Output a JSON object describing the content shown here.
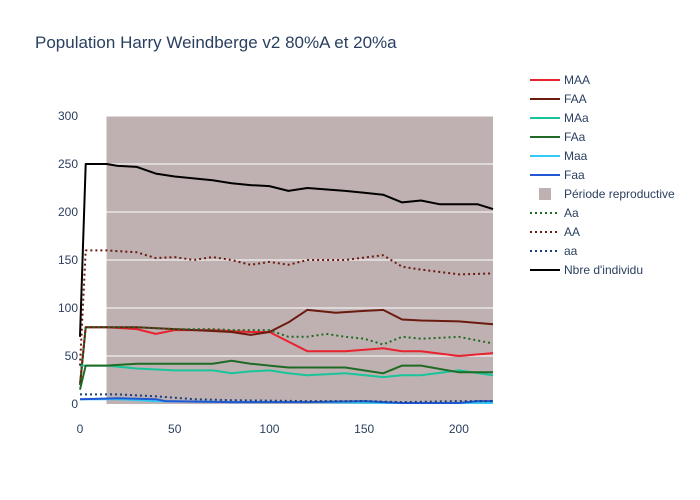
{
  "colors": {
    "MAA": "#e8222f",
    "FAA": "#6b1a10",
    "MAa": "#18c49a",
    "FAa": "#1f6b25",
    "Maa": "#35c8f2",
    "Faa": "#2058d4",
    "repro": "#bfb1b1",
    "Aa": "#1f6b25",
    "AA": "#6b1a10",
    "aa": "#1a3f7a",
    "total": "#000000"
  },
  "chart_data": {
    "type": "line",
    "title": "Population Harry Weindberge v2 80%A et 20%a",
    "xlabel": "",
    "ylabel": "",
    "xlim": [
      0,
      218
    ],
    "ylim": [
      0,
      300
    ],
    "x_ticks": [
      0,
      50,
      100,
      150,
      200
    ],
    "y_ticks": [
      0,
      50,
      100,
      150,
      200,
      250,
      300
    ],
    "legend_position": "right",
    "reproductive_period": {
      "name": "Période reproductive",
      "x0": 14,
      "x1": 218
    },
    "series": [
      {
        "name": "MAA",
        "color_key": "MAA",
        "dash": "solid",
        "points": [
          [
            0,
            20
          ],
          [
            3,
            80
          ],
          [
            14,
            80
          ],
          [
            30,
            78
          ],
          [
            40,
            73
          ],
          [
            50,
            77
          ],
          [
            70,
            77
          ],
          [
            90,
            75
          ],
          [
            100,
            75
          ],
          [
            110,
            65
          ],
          [
            120,
            55
          ],
          [
            140,
            55
          ],
          [
            160,
            58
          ],
          [
            170,
            55
          ],
          [
            180,
            55
          ],
          [
            200,
            50
          ],
          [
            218,
            53
          ]
        ]
      },
      {
        "name": "FAA",
        "color_key": "FAA",
        "dash": "solid",
        "points": [
          [
            0,
            20
          ],
          [
            3,
            80
          ],
          [
            14,
            80
          ],
          [
            30,
            80
          ],
          [
            50,
            78
          ],
          [
            70,
            76
          ],
          [
            80,
            75
          ],
          [
            90,
            72
          ],
          [
            100,
            75
          ],
          [
            110,
            85
          ],
          [
            120,
            98
          ],
          [
            135,
            95
          ],
          [
            150,
            97
          ],
          [
            160,
            98
          ],
          [
            170,
            88
          ],
          [
            180,
            87
          ],
          [
            200,
            86
          ],
          [
            218,
            83
          ]
        ]
      },
      {
        "name": "MAa",
        "color_key": "MAa",
        "dash": "solid",
        "points": [
          [
            0,
            40
          ],
          [
            3,
            40
          ],
          [
            14,
            40
          ],
          [
            30,
            37
          ],
          [
            50,
            35
          ],
          [
            70,
            35
          ],
          [
            80,
            32
          ],
          [
            90,
            34
          ],
          [
            100,
            35
          ],
          [
            110,
            32
          ],
          [
            120,
            30
          ],
          [
            140,
            32
          ],
          [
            160,
            28
          ],
          [
            170,
            30
          ],
          [
            180,
            30
          ],
          [
            200,
            35
          ],
          [
            218,
            30
          ]
        ]
      },
      {
        "name": "FAa",
        "color_key": "FAa",
        "dash": "solid",
        "points": [
          [
            0,
            15
          ],
          [
            3,
            40
          ],
          [
            14,
            40
          ],
          [
            30,
            42
          ],
          [
            50,
            42
          ],
          [
            70,
            42
          ],
          [
            80,
            45
          ],
          [
            90,
            42
          ],
          [
            100,
            40
          ],
          [
            110,
            38
          ],
          [
            120,
            38
          ],
          [
            140,
            38
          ],
          [
            160,
            32
          ],
          [
            170,
            40
          ],
          [
            180,
            40
          ],
          [
            200,
            33
          ],
          [
            218,
            33
          ]
        ]
      },
      {
        "name": "Maa",
        "color_key": "Maa",
        "dash": "solid",
        "points": [
          [
            0,
            5
          ],
          [
            20,
            5
          ],
          [
            40,
            3
          ],
          [
            80,
            2
          ],
          [
            120,
            2
          ],
          [
            160,
            1
          ],
          [
            218,
            1
          ]
        ]
      },
      {
        "name": "Faa",
        "color_key": "Faa",
        "dash": "solid",
        "points": [
          [
            0,
            5
          ],
          [
            20,
            6
          ],
          [
            40,
            5
          ],
          [
            45,
            3
          ],
          [
            80,
            2
          ],
          [
            120,
            2
          ],
          [
            150,
            3
          ],
          [
            170,
            1
          ],
          [
            200,
            1
          ],
          [
            210,
            3
          ],
          [
            218,
            3
          ]
        ]
      },
      {
        "name": "Aa",
        "color_key": "Aa",
        "dash": "dot",
        "points": [
          [
            0,
            20
          ],
          [
            3,
            80
          ],
          [
            14,
            80
          ],
          [
            30,
            80
          ],
          [
            50,
            78
          ],
          [
            70,
            78
          ],
          [
            80,
            77
          ],
          [
            90,
            77
          ],
          [
            100,
            77
          ],
          [
            110,
            70
          ],
          [
            120,
            70
          ],
          [
            130,
            73
          ],
          [
            140,
            70
          ],
          [
            150,
            68
          ],
          [
            160,
            62
          ],
          [
            170,
            70
          ],
          [
            180,
            68
          ],
          [
            200,
            70
          ],
          [
            218,
            63
          ]
        ]
      },
      {
        "name": "AA",
        "color_key": "AA",
        "dash": "dot",
        "points": [
          [
            0,
            40
          ],
          [
            3,
            160
          ],
          [
            14,
            160
          ],
          [
            30,
            158
          ],
          [
            40,
            152
          ],
          [
            50,
            153
          ],
          [
            60,
            150
          ],
          [
            70,
            153
          ],
          [
            80,
            150
          ],
          [
            90,
            145
          ],
          [
            100,
            148
          ],
          [
            110,
            145
          ],
          [
            120,
            150
          ],
          [
            140,
            150
          ],
          [
            160,
            155
          ],
          [
            170,
            143
          ],
          [
            180,
            140
          ],
          [
            200,
            135
          ],
          [
            218,
            136
          ]
        ]
      },
      {
        "name": "aa",
        "color_key": "aa",
        "dash": "dot",
        "points": [
          [
            0,
            10
          ],
          [
            20,
            10
          ],
          [
            40,
            8
          ],
          [
            60,
            5
          ],
          [
            80,
            4
          ],
          [
            120,
            3
          ],
          [
            150,
            3
          ],
          [
            170,
            2
          ],
          [
            200,
            3
          ],
          [
            218,
            3
          ]
        ]
      },
      {
        "name": "Nbre d'individu",
        "color_key": "total",
        "dash": "solid",
        "points": [
          [
            0,
            70
          ],
          [
            3,
            250
          ],
          [
            14,
            250
          ],
          [
            20,
            248
          ],
          [
            30,
            247
          ],
          [
            40,
            240
          ],
          [
            50,
            237
          ],
          [
            60,
            235
          ],
          [
            70,
            233
          ],
          [
            80,
            230
          ],
          [
            90,
            228
          ],
          [
            100,
            227
          ],
          [
            110,
            222
          ],
          [
            120,
            225
          ],
          [
            140,
            222
          ],
          [
            150,
            220
          ],
          [
            160,
            218
          ],
          [
            170,
            210
          ],
          [
            180,
            212
          ],
          [
            190,
            208
          ],
          [
            200,
            208
          ],
          [
            210,
            208
          ],
          [
            218,
            203
          ]
        ]
      }
    ]
  }
}
